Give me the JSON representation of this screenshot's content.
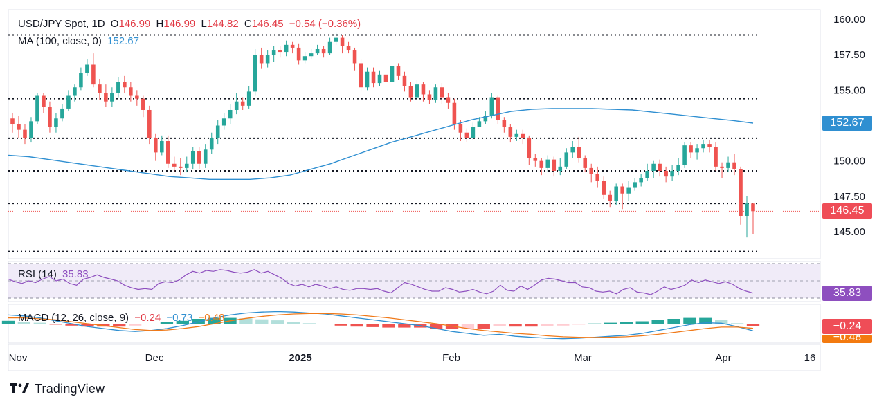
{
  "header": {
    "symbol": "USD/JPY Spot, 1D",
    "open_label": "O",
    "open": "146.99",
    "high_label": "H",
    "high": "146.99",
    "low_label": "L",
    "low": "144.82",
    "close_label": "C",
    "close": "146.45",
    "change": "−0.54 (−0.36%)"
  },
  "ma_legend": {
    "label": "MA (100, close, 0)",
    "value": "152.67"
  },
  "rsi_legend": {
    "label": "RSI (14)",
    "value": "35.83"
  },
  "macd_legend": {
    "label": "MACD (12, 26, close, 9)",
    "hist": "−0.24",
    "macd": "−0.73",
    "signal": "−0.48"
  },
  "badges": {
    "ma": "152.67",
    "price": "146.45",
    "rsi": "35.83",
    "macd_hist": "−0.24",
    "macd_signal": "−0.48"
  },
  "brand": "TradingView",
  "colors": {
    "up": "#26a69a",
    "down": "#ef5350",
    "ma": "#2f8fd1",
    "rsi": "#8e4fbf",
    "macd": "#2f8fd1",
    "signal": "#f07a1a",
    "badge_blue": "#2f8fd1",
    "badge_red": "#ef4d57",
    "badge_purple": "#8e4fbf",
    "badge_orange": "#f37a10"
  },
  "chart_data": {
    "type": "candlestick",
    "title": "USD/JPY Spot, 1D",
    "y_ticks": [
      "160.00",
      "157.50",
      "155.00",
      "152.67",
      "150.00",
      "147.50",
      "146.45",
      "145.00"
    ],
    "ylim": [
      143.0,
      160.5
    ],
    "x_ticks": [
      "Nov",
      "Dec",
      "2025",
      "Feb",
      "Mar",
      "Apr",
      "16"
    ],
    "horizontal_levels": [
      158.9,
      154.4,
      151.6,
      149.3,
      147.0,
      143.6
    ],
    "current_price_line": 146.45,
    "candles": [
      [
        153.0,
        152.6,
        153.4,
        152.0
      ],
      [
        152.6,
        152.2,
        153.2,
        151.6
      ],
      [
        152.2,
        151.6,
        152.6,
        151.2
      ],
      [
        151.6,
        152.8,
        153.1,
        151.3
      ],
      [
        152.8,
        154.6,
        154.8,
        152.6
      ],
      [
        154.6,
        153.8,
        154.8,
        153.4
      ],
      [
        153.8,
        152.4,
        154.2,
        152.0
      ],
      [
        152.4,
        153.0,
        153.4,
        152.0
      ],
      [
        153.0,
        153.7,
        154.0,
        152.8
      ],
      [
        153.7,
        154.6,
        155.0,
        153.5
      ],
      [
        154.6,
        155.2,
        155.4,
        154.2
      ],
      [
        155.2,
        156.2,
        156.6,
        155.0
      ],
      [
        156.2,
        156.8,
        157.2,
        156.0
      ],
      [
        156.8,
        155.4,
        157.6,
        155.2
      ],
      [
        155.4,
        154.8,
        155.8,
        154.3
      ],
      [
        154.8,
        154.2,
        155.4,
        153.8
      ],
      [
        154.2,
        154.8,
        155.2,
        153.8
      ],
      [
        154.8,
        155.6,
        155.9,
        154.5
      ],
      [
        155.6,
        155.2,
        156.0,
        154.8
      ],
      [
        155.2,
        154.6,
        155.6,
        154.2
      ],
      [
        154.6,
        154.4,
        155.0,
        153.9
      ],
      [
        154.4,
        153.6,
        154.6,
        153.1
      ],
      [
        153.6,
        151.6,
        153.9,
        151.2
      ],
      [
        151.6,
        150.6,
        151.9,
        150.0
      ],
      [
        150.6,
        151.4,
        151.8,
        150.4
      ],
      [
        151.4,
        149.8,
        151.8,
        149.5
      ],
      [
        149.8,
        149.6,
        150.3,
        149.2
      ],
      [
        149.6,
        149.5,
        150.2,
        149.0
      ],
      [
        149.5,
        149.8,
        150.3,
        149.2
      ],
      [
        149.8,
        150.7,
        151.0,
        149.4
      ],
      [
        150.7,
        149.8,
        151.0,
        149.4
      ],
      [
        149.8,
        150.8,
        151.2,
        149.5
      ],
      [
        150.8,
        151.6,
        152.0,
        150.5
      ],
      [
        151.6,
        152.5,
        152.9,
        151.2
      ],
      [
        152.5,
        153.0,
        153.4,
        152.2
      ],
      [
        153.0,
        153.6,
        154.0,
        152.6
      ],
      [
        153.6,
        154.2,
        154.8,
        153.3
      ],
      [
        154.2,
        153.9,
        154.5,
        153.6
      ],
      [
        153.9,
        154.9,
        155.3,
        153.7
      ],
      [
        154.9,
        157.5,
        157.9,
        154.6
      ],
      [
        157.5,
        156.9,
        158.0,
        156.5
      ],
      [
        156.9,
        157.5,
        157.8,
        156.6
      ],
      [
        157.5,
        157.8,
        158.1,
        157.0
      ],
      [
        157.8,
        157.7,
        158.1,
        157.3
      ],
      [
        157.7,
        158.2,
        158.5,
        157.4
      ],
      [
        158.2,
        158.0,
        158.4,
        157.6
      ],
      [
        158.0,
        157.1,
        158.3,
        156.8
      ],
      [
        157.1,
        157.4,
        157.7,
        156.9
      ],
      [
        157.4,
        157.6,
        157.9,
        157.2
      ],
      [
        157.6,
        157.9,
        158.2,
        157.5
      ],
      [
        157.9,
        157.6,
        158.1,
        157.3
      ],
      [
        157.6,
        158.4,
        158.7,
        157.5
      ],
      [
        158.4,
        158.7,
        159.1,
        158.2
      ],
      [
        158.7,
        158.1,
        158.9,
        157.6
      ],
      [
        158.1,
        157.8,
        158.4,
        157.6
      ],
      [
        157.8,
        156.9,
        158.0,
        156.4
      ],
      [
        156.9,
        155.2,
        157.2,
        154.9
      ],
      [
        155.2,
        156.3,
        156.6,
        155.0
      ],
      [
        156.3,
        155.5,
        156.6,
        155.2
      ],
      [
        155.5,
        156.1,
        156.4,
        155.3
      ],
      [
        156.1,
        155.6,
        156.4,
        155.3
      ],
      [
        155.6,
        156.7,
        156.9,
        155.4
      ],
      [
        156.7,
        156.0,
        156.9,
        155.7
      ],
      [
        156.0,
        155.3,
        156.3,
        154.9
      ],
      [
        155.3,
        154.5,
        155.6,
        154.2
      ],
      [
        154.5,
        155.4,
        155.7,
        154.3
      ],
      [
        155.4,
        154.7,
        155.6,
        154.2
      ],
      [
        154.7,
        154.3,
        155.0,
        154.0
      ],
      [
        154.3,
        155.2,
        155.4,
        154.1
      ],
      [
        155.2,
        154.5,
        155.5,
        154.0
      ],
      [
        154.5,
        154.1,
        154.8,
        153.7
      ],
      [
        154.1,
        152.6,
        154.4,
        152.2
      ],
      [
        152.6,
        152.0,
        152.9,
        151.4
      ],
      [
        152.0,
        151.6,
        152.3,
        151.3
      ],
      [
        151.6,
        152.4,
        152.7,
        151.5
      ],
      [
        152.4,
        152.8,
        153.1,
        152.4
      ],
      [
        152.8,
        153.2,
        153.5,
        152.6
      ],
      [
        153.2,
        154.5,
        154.8,
        153.0
      ],
      [
        154.5,
        152.9,
        154.6,
        152.6
      ],
      [
        152.9,
        152.4,
        153.1,
        152.0
      ],
      [
        152.4,
        151.7,
        152.6,
        151.3
      ],
      [
        151.7,
        151.9,
        152.2,
        151.4
      ],
      [
        151.9,
        151.6,
        152.2,
        151.2
      ],
      [
        151.6,
        150.2,
        151.8,
        149.7
      ],
      [
        150.2,
        150.0,
        150.5,
        149.6
      ],
      [
        150.0,
        149.5,
        150.2,
        149.0
      ],
      [
        149.5,
        150.1,
        150.4,
        149.2
      ],
      [
        150.1,
        149.3,
        150.3,
        148.9
      ],
      [
        149.3,
        149.6,
        150.2,
        149.0
      ],
      [
        149.6,
        150.6,
        150.9,
        149.4
      ],
      [
        150.6,
        151.0,
        151.4,
        150.2
      ],
      [
        151.0,
        150.2,
        151.7,
        149.9
      ],
      [
        150.2,
        149.5,
        150.4,
        149.2
      ],
      [
        149.5,
        149.1,
        149.8,
        148.5
      ],
      [
        149.1,
        148.6,
        149.6,
        148.1
      ],
      [
        148.6,
        147.6,
        148.9,
        147.3
      ],
      [
        147.6,
        147.2,
        147.9,
        146.7
      ],
      [
        147.2,
        148.2,
        148.4,
        146.9
      ],
      [
        148.2,
        147.7,
        148.4,
        146.6
      ],
      [
        147.7,
        148.1,
        148.6,
        147.2
      ],
      [
        148.1,
        148.5,
        148.8,
        147.9
      ],
      [
        148.5,
        148.8,
        149.1,
        148.2
      ],
      [
        148.8,
        149.3,
        149.8,
        148.6
      ],
      [
        149.3,
        149.8,
        150.0,
        148.8
      ],
      [
        149.8,
        149.3,
        150.1,
        148.9
      ],
      [
        149.3,
        148.9,
        149.6,
        148.5
      ],
      [
        148.9,
        149.3,
        149.7,
        148.6
      ],
      [
        149.3,
        149.7,
        150.2,
        149.0
      ],
      [
        149.7,
        151.1,
        151.3,
        149.5
      ],
      [
        151.1,
        150.6,
        151.3,
        150.2
      ],
      [
        150.6,
        150.9,
        151.2,
        150.1
      ],
      [
        150.9,
        151.2,
        151.5,
        150.6
      ],
      [
        151.2,
        151.0,
        151.5,
        150.6
      ],
      [
        151.0,
        149.6,
        151.3,
        149.3
      ],
      [
        149.6,
        149.5,
        149.9,
        148.8
      ],
      [
        149.5,
        149.9,
        150.3,
        149.2
      ],
      [
        149.9,
        149.4,
        150.5,
        149.0
      ],
      [
        149.4,
        146.1,
        149.6,
        145.5
      ],
      [
        146.1,
        146.99,
        147.5,
        144.6
      ],
      [
        146.99,
        146.45,
        146.99,
        144.82
      ]
    ],
    "ma100": [
      150.4,
      150.3,
      150.1,
      149.9,
      149.7,
      149.5,
      149.3,
      149.1,
      148.9,
      148.8,
      148.7,
      148.7,
      148.7,
      148.8,
      149.0,
      149.4,
      149.8,
      150.3,
      150.8,
      151.3,
      151.7,
      152.1,
      152.5,
      152.9,
      153.2,
      153.5,
      153.65,
      153.7,
      153.7,
      153.7,
      153.65,
      153.6,
      153.45,
      153.3,
      153.15,
      153.0,
      152.85,
      152.67
    ],
    "rsi": [
      52,
      49,
      47,
      50,
      48,
      52,
      55,
      50,
      52,
      47,
      45,
      52,
      54,
      57,
      54,
      52,
      50,
      45,
      42,
      40,
      41,
      40,
      47,
      49,
      48,
      51,
      57,
      61,
      59,
      62,
      61,
      63,
      62,
      60,
      59,
      60,
      63,
      59,
      61,
      57,
      53,
      47,
      44,
      46,
      43,
      46,
      44,
      41,
      43,
      40,
      39,
      41,
      41,
      40,
      41,
      38,
      36,
      42,
      48,
      46,
      43,
      40,
      38,
      38,
      42,
      40,
      37,
      38,
      40,
      37,
      35,
      38,
      45,
      39,
      38,
      44,
      40,
      45,
      51,
      53,
      52,
      50,
      48,
      48,
      43,
      42,
      38,
      37,
      38,
      35,
      40,
      42,
      37,
      36,
      34,
      38,
      43,
      40,
      42,
      45,
      51,
      48,
      51,
      49,
      47,
      49,
      46,
      41,
      38,
      35.83
    ],
    "macd": [
      0.9,
      0.8,
      0.6,
      0.3,
      0.0,
      -0.3,
      -0.5,
      -0.7,
      -0.8,
      -0.7,
      -0.5,
      -0.2,
      0.2,
      0.6,
      0.9,
      1.1,
      1.2,
      1.25,
      1.2,
      1.1,
      1.0,
      0.8,
      0.6,
      0.4,
      0.2,
      0.0,
      -0.2,
      -0.5,
      -0.8,
      -1.0,
      -1.2,
      -1.1,
      -1.3,
      -1.4,
      -1.5,
      -1.55,
      -1.5,
      -1.4,
      -1.3,
      -1.2,
      -1.0,
      -0.7,
      -0.4,
      -0.1,
      0.1,
      0.05,
      -0.3,
      -0.73
    ],
    "macd_signal": [
      0.6,
      0.6,
      0.5,
      0.4,
      0.2,
      0.0,
      -0.2,
      -0.4,
      -0.6,
      -0.7,
      -0.65,
      -0.5,
      -0.3,
      0.0,
      0.3,
      0.55,
      0.75,
      0.9,
      1.0,
      1.05,
      1.05,
      1.0,
      0.9,
      0.75,
      0.6,
      0.4,
      0.2,
      0.0,
      -0.25,
      -0.5,
      -0.7,
      -0.85,
      -1.0,
      -1.1,
      -1.25,
      -1.35,
      -1.4,
      -1.42,
      -1.4,
      -1.35,
      -1.25,
      -1.1,
      -0.9,
      -0.7,
      -0.5,
      -0.35,
      -0.35,
      -0.48
    ],
    "macd_hist": [
      0.3,
      0.2,
      0.1,
      -0.1,
      -0.2,
      -0.3,
      -0.3,
      -0.3,
      -0.2,
      0.0,
      0.15,
      0.3,
      0.5,
      0.6,
      0.6,
      0.55,
      0.45,
      0.35,
      0.2,
      0.05,
      -0.05,
      -0.2,
      -0.3,
      -0.35,
      -0.4,
      -0.4,
      -0.4,
      -0.5,
      -0.55,
      -0.5,
      -0.5,
      -0.25,
      -0.3,
      -0.3,
      -0.25,
      -0.2,
      -0.1,
      0.02,
      0.1,
      0.15,
      0.25,
      0.4,
      0.5,
      0.6,
      0.6,
      0.4,
      0.05,
      -0.24
    ]
  }
}
